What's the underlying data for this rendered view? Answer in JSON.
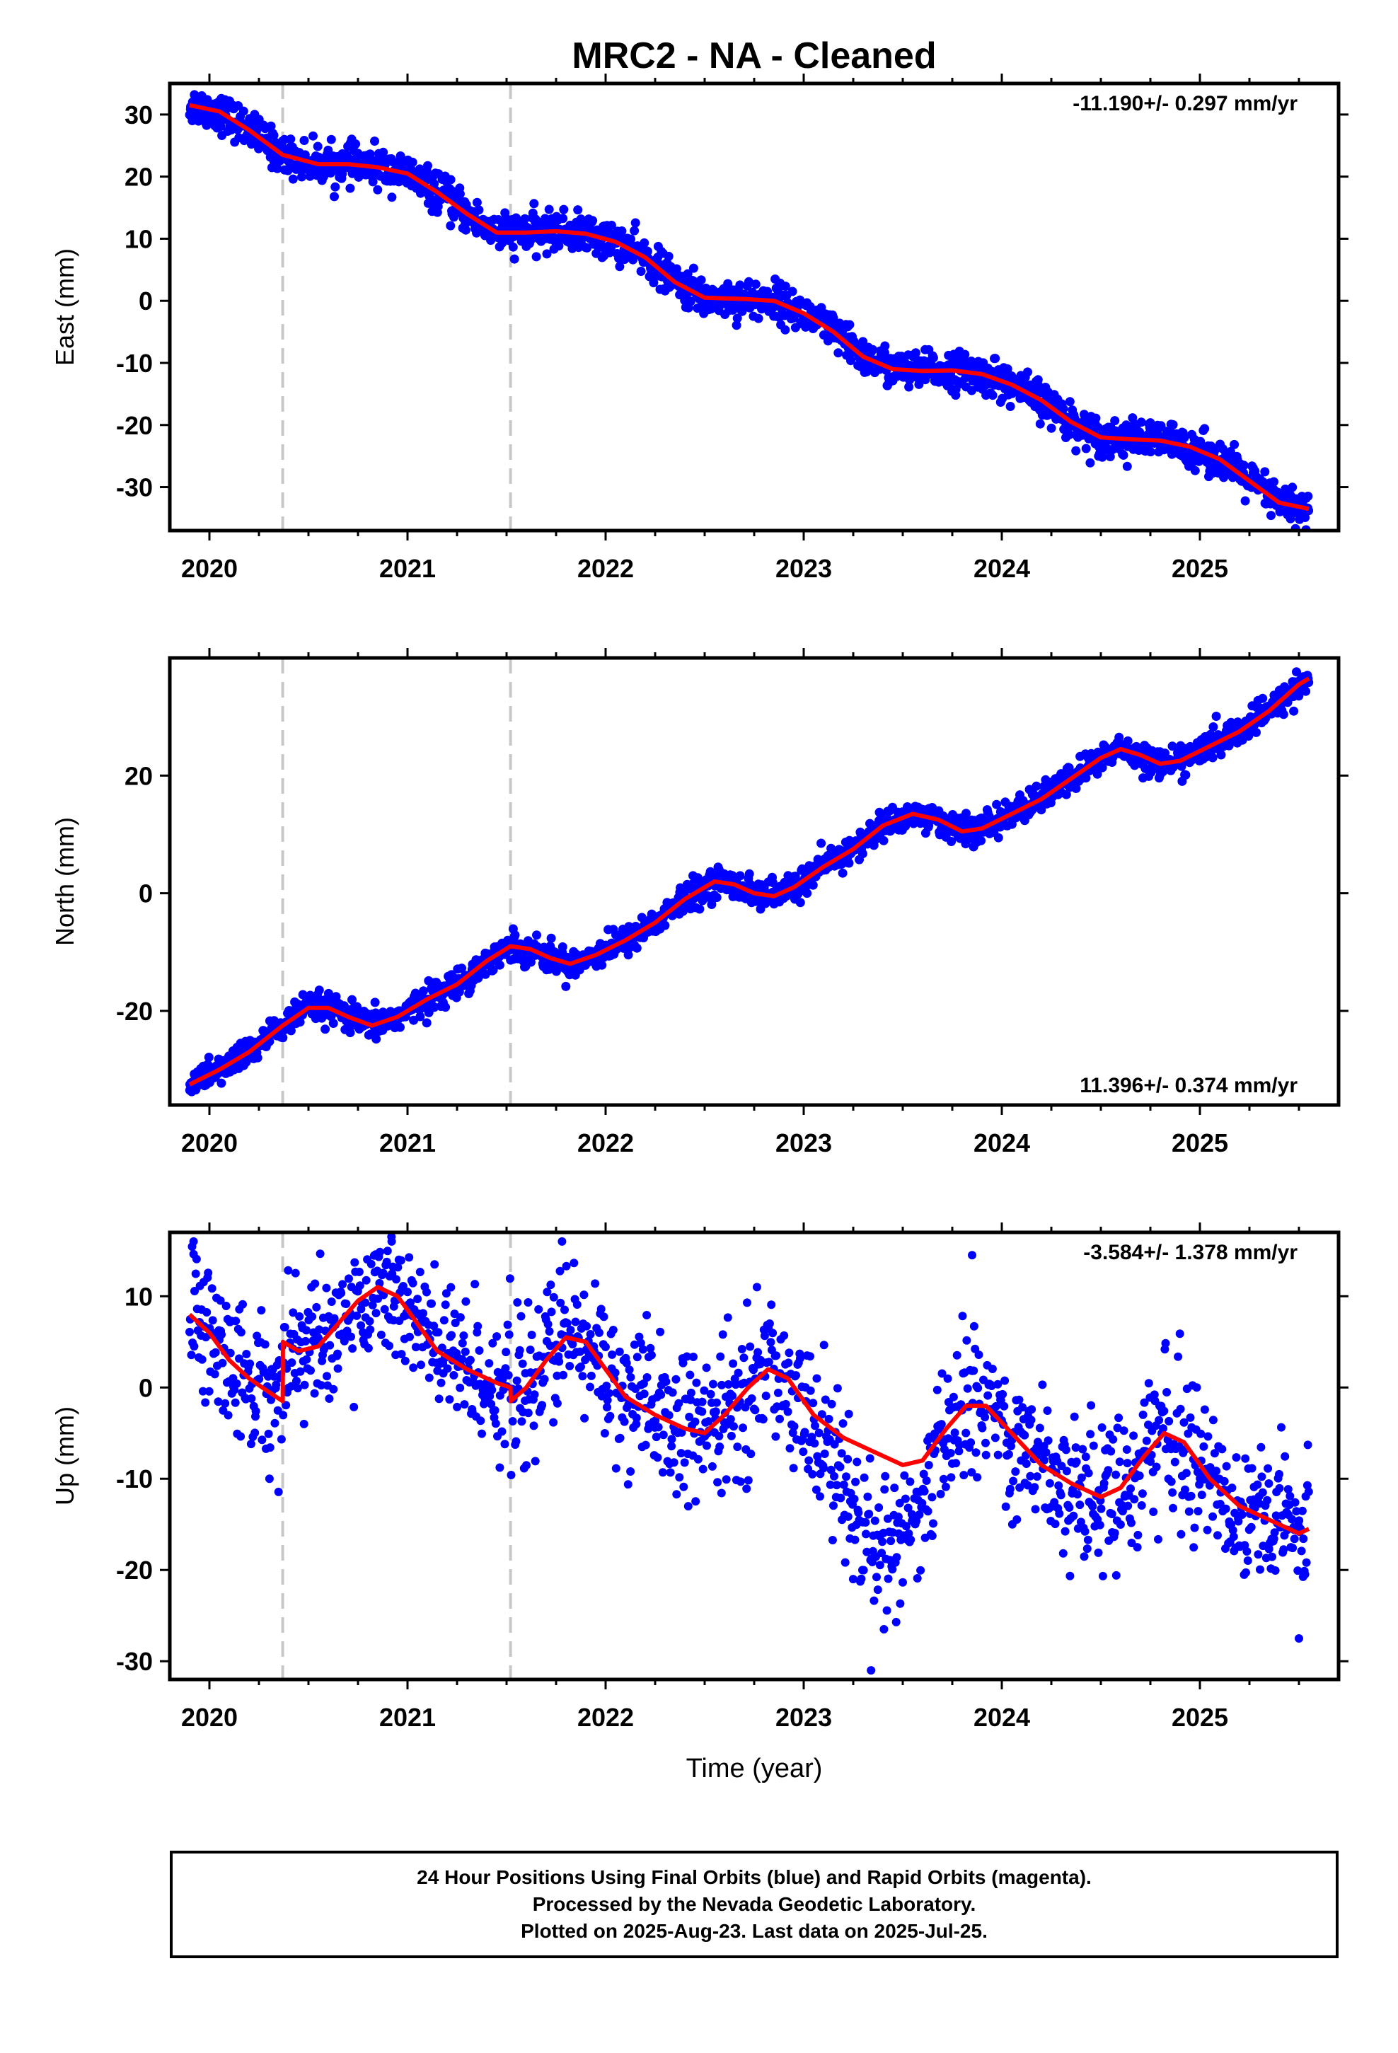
{
  "title": "MRC2  - NA - Cleaned",
  "colors": {
    "data": "#0000ff",
    "model": "#ff0000",
    "breaks": "#c8c8c8",
    "frame": "#000000"
  },
  "footer": {
    "line1": "24 Hour Positions Using Final Orbits (blue) and Rapid Orbits (magenta).",
    "line2": "Processed by the Nevada Geodetic Laboratory.",
    "line3": "Plotted on 2025-Aug-23. Last data on 2025-Jul-25."
  },
  "chart_data": [
    {
      "type": "scatter",
      "component": "East",
      "ylabel": "East (mm)",
      "xlabel": "",
      "xlim": [
        2019.8,
        2025.7
      ],
      "ylim": [
        -37,
        35
      ],
      "xticks": [
        2020,
        2021,
        2022,
        2023,
        2024,
        2025
      ],
      "yticks": [
        30,
        20,
        10,
        0,
        -10,
        -20,
        -30
      ],
      "velocity": "-11.190+/- 0.297 mm/yr",
      "velocity_position": "top-right",
      "breaks": [
        2020.37,
        2021.52
      ],
      "model_curve": [
        [
          2019.9,
          31.5
        ],
        [
          2020.05,
          30.5
        ],
        [
          2020.2,
          27.5
        ],
        [
          2020.37,
          23.5
        ],
        [
          2020.55,
          22
        ],
        [
          2020.7,
          22
        ],
        [
          2020.85,
          21.5
        ],
        [
          2021.0,
          20.5
        ],
        [
          2021.15,
          17.5
        ],
        [
          2021.3,
          14
        ],
        [
          2021.45,
          11
        ],
        [
          2021.6,
          11
        ],
        [
          2021.75,
          11.2
        ],
        [
          2021.9,
          10.8
        ],
        [
          2022.05,
          9.5
        ],
        [
          2022.2,
          7
        ],
        [
          2022.35,
          3
        ],
        [
          2022.5,
          0.5
        ],
        [
          2022.7,
          0.3
        ],
        [
          2022.85,
          0
        ],
        [
          2023.0,
          -2
        ],
        [
          2023.15,
          -5
        ],
        [
          2023.3,
          -9
        ],
        [
          2023.45,
          -11
        ],
        [
          2023.6,
          -11.3
        ],
        [
          2023.75,
          -11.2
        ],
        [
          2023.9,
          -11.8
        ],
        [
          2024.05,
          -13.5
        ],
        [
          2024.2,
          -16
        ],
        [
          2024.35,
          -19.5
        ],
        [
          2024.5,
          -22
        ],
        [
          2024.65,
          -22.3
        ],
        [
          2024.8,
          -22.5
        ],
        [
          2024.95,
          -23.5
        ],
        [
          2025.1,
          -25.5
        ],
        [
          2025.25,
          -29
        ],
        [
          2025.4,
          -32.5
        ],
        [
          2025.55,
          -33.5
        ]
      ],
      "scatter_noise_mm": 1.5
    },
    {
      "type": "scatter",
      "component": "North",
      "ylabel": "North (mm)",
      "xlabel": "",
      "xlim": [
        2019.8,
        2025.7
      ],
      "ylim": [
        -36,
        40
      ],
      "xticks": [
        2020,
        2021,
        2022,
        2023,
        2024,
        2025
      ],
      "yticks": [
        20,
        0,
        -20
      ],
      "velocity": "11.396+/- 0.374 mm/yr",
      "velocity_position": "bottom-right",
      "breaks": [
        2020.37,
        2021.52
      ],
      "model_curve": [
        [
          2019.9,
          -32.5
        ],
        [
          2020.05,
          -30
        ],
        [
          2020.2,
          -27
        ],
        [
          2020.37,
          -22.5
        ],
        [
          2020.5,
          -19.5
        ],
        [
          2020.6,
          -19.5
        ],
        [
          2020.7,
          -21
        ],
        [
          2020.82,
          -22.5
        ],
        [
          2020.95,
          -21
        ],
        [
          2021.1,
          -18
        ],
        [
          2021.25,
          -15.5
        ],
        [
          2021.4,
          -11.5
        ],
        [
          2021.52,
          -9
        ],
        [
          2021.62,
          -9.5
        ],
        [
          2021.72,
          -11
        ],
        [
          2021.82,
          -12
        ],
        [
          2021.95,
          -10.5
        ],
        [
          2022.1,
          -8
        ],
        [
          2022.25,
          -5
        ],
        [
          2022.4,
          -1
        ],
        [
          2022.55,
          2
        ],
        [
          2022.65,
          1.5
        ],
        [
          2022.75,
          0
        ],
        [
          2022.85,
          -0.5
        ],
        [
          2022.95,
          1
        ],
        [
          2023.1,
          4.5
        ],
        [
          2023.25,
          7.5
        ],
        [
          2023.4,
          11.5
        ],
        [
          2023.55,
          13.5
        ],
        [
          2023.68,
          12.5
        ],
        [
          2023.8,
          10.5
        ],
        [
          2023.9,
          11
        ],
        [
          2024.05,
          13.5
        ],
        [
          2024.2,
          16
        ],
        [
          2024.35,
          19.5
        ],
        [
          2024.5,
          23
        ],
        [
          2024.6,
          24.5
        ],
        [
          2024.7,
          23.5
        ],
        [
          2024.8,
          22
        ],
        [
          2024.9,
          22.5
        ],
        [
          2025.05,
          25
        ],
        [
          2025.2,
          27.5
        ],
        [
          2025.35,
          31
        ],
        [
          2025.5,
          35.5
        ],
        [
          2025.55,
          36.5
        ]
      ],
      "scatter_noise_mm": 1.2
    },
    {
      "type": "scatter",
      "component": "Up",
      "ylabel": "Up (mm)",
      "xlabel": "Time (year)",
      "xlim": [
        2019.8,
        2025.7
      ],
      "ylim": [
        -32,
        17
      ],
      "xticks": [
        2020,
        2021,
        2022,
        2023,
        2024,
        2025
      ],
      "yticks": [
        10,
        0,
        -10,
        -20,
        -30
      ],
      "velocity": "-3.584+/- 1.378 mm/yr",
      "velocity_position": "top-right",
      "breaks": [
        2020.37,
        2021.52
      ],
      "model_curve": [
        [
          2019.9,
          8
        ],
        [
          2020.0,
          6
        ],
        [
          2020.1,
          3
        ],
        [
          2020.2,
          1
        ],
        [
          2020.3,
          -0.5
        ],
        [
          2020.37,
          -1.5
        ],
        [
          2020.371,
          5
        ],
        [
          2020.45,
          4
        ],
        [
          2020.55,
          4.5
        ],
        [
          2020.65,
          7
        ],
        [
          2020.75,
          9.5
        ],
        [
          2020.85,
          11
        ],
        [
          2020.95,
          10
        ],
        [
          2021.05,
          7
        ],
        [
          2021.15,
          4
        ],
        [
          2021.3,
          2
        ],
        [
          2021.45,
          0.5
        ],
        [
          2021.52,
          0
        ],
        [
          2021.521,
          -1.5
        ],
        [
          2021.6,
          0
        ],
        [
          2021.7,
          3
        ],
        [
          2021.8,
          5.5
        ],
        [
          2021.9,
          5
        ],
        [
          2022.0,
          2
        ],
        [
          2022.1,
          -1
        ],
        [
          2022.25,
          -3
        ],
        [
          2022.4,
          -4.5
        ],
        [
          2022.5,
          -5
        ],
        [
          2022.6,
          -3
        ],
        [
          2022.72,
          0
        ],
        [
          2022.82,
          2
        ],
        [
          2022.92,
          1
        ],
        [
          2023.05,
          -3
        ],
        [
          2023.2,
          -5.5
        ],
        [
          2023.35,
          -7
        ],
        [
          2023.5,
          -8.5
        ],
        [
          2023.6,
          -8
        ],
        [
          2023.72,
          -4.5
        ],
        [
          2023.82,
          -2
        ],
        [
          2023.92,
          -2
        ],
        [
          2024.05,
          -5
        ],
        [
          2024.2,
          -8.5
        ],
        [
          2024.35,
          -10.5
        ],
        [
          2024.5,
          -12
        ],
        [
          2024.6,
          -11
        ],
        [
          2024.72,
          -7.5
        ],
        [
          2024.82,
          -5
        ],
        [
          2024.92,
          -6
        ],
        [
          2025.05,
          -10
        ],
        [
          2025.2,
          -13
        ],
        [
          2025.35,
          -14.5
        ],
        [
          2025.5,
          -16
        ],
        [
          2025.55,
          -15.5
        ]
      ],
      "scatter_noise_mm": 4.0,
      "annotated_points": [
        [
          2019.92,
          16
        ],
        [
          2020.92,
          16
        ],
        [
          2021.78,
          16
        ],
        [
          2023.34,
          -31
        ],
        [
          2023.85,
          14.5
        ],
        [
          2025.5,
          -27.5
        ]
      ]
    }
  ]
}
